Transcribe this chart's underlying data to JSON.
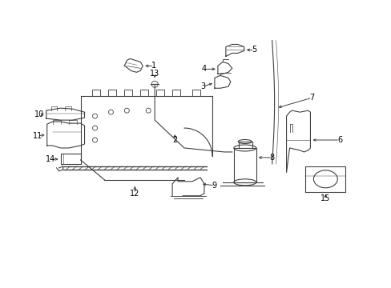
{
  "background_color": "#ffffff",
  "line_color": "#404040",
  "label_color": "#000000",
  "figsize": [
    4.89,
    3.6
  ],
  "dpi": 100
}
